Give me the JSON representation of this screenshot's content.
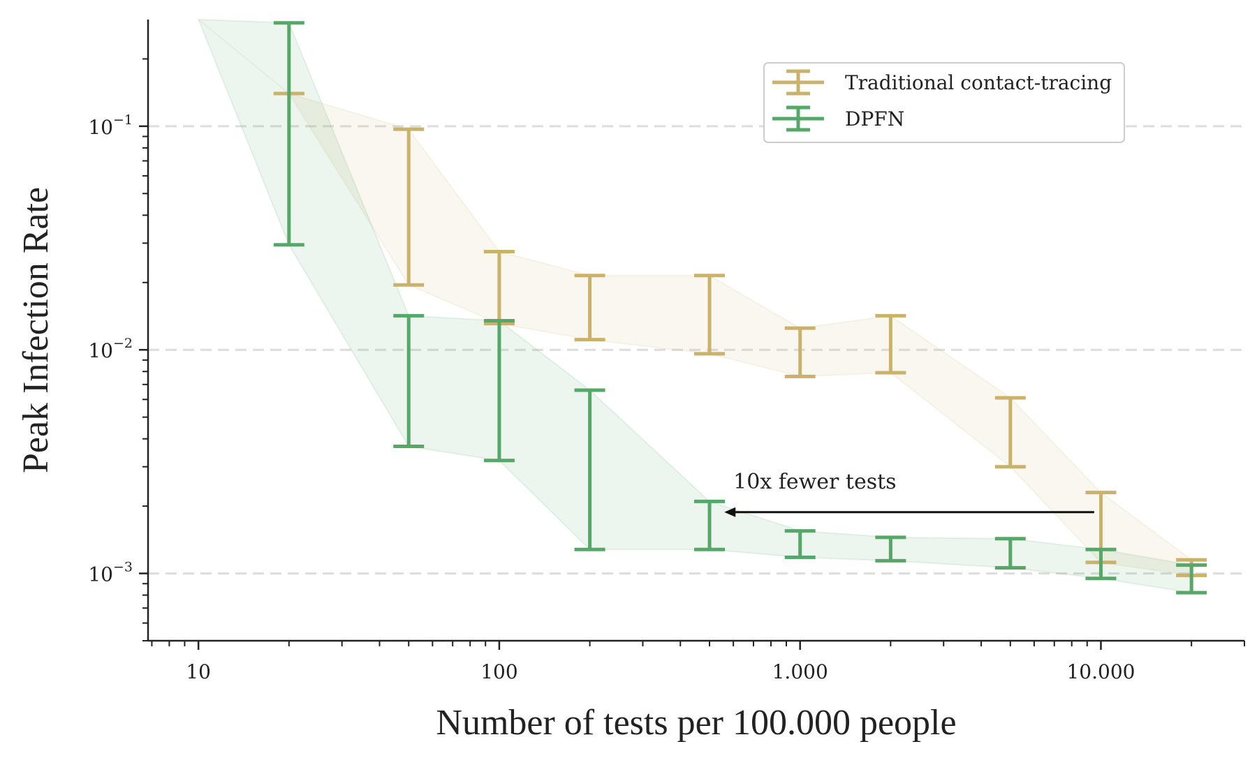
{
  "chart_data": {
    "type": "line",
    "xlabel": "Number of tests per 100.000 people",
    "ylabel": "Peak Infection Rate",
    "xscale": "log",
    "yscale": "log",
    "xlim": [
      6.8,
      30000
    ],
    "ylim": [
      0.0005,
      0.3
    ],
    "grid": "horizontal dashed at decades",
    "legend_position": "top-right",
    "x_ticks": [
      {
        "value": 10,
        "label": "10"
      },
      {
        "value": 100,
        "label": "100"
      },
      {
        "value": 1000,
        "label": "1.000"
      },
      {
        "value": 10000,
        "label": "10.000"
      }
    ],
    "y_ticks": [
      {
        "value": 0.1,
        "base": "10",
        "exp": "−1"
      },
      {
        "value": 0.01,
        "base": "10",
        "exp": "−2"
      },
      {
        "value": 0.001,
        "base": "10",
        "exp": "−3"
      }
    ],
    "series": [
      {
        "name": "Traditional contact-tracing",
        "color": "#cbb26a",
        "x": [
          10,
          20,
          50,
          100,
          200,
          500,
          1000,
          2000,
          5000,
          10000,
          20000
        ],
        "lower": [
          0.3,
          0.14,
          0.0195,
          0.0131,
          0.0111,
          0.0096,
          0.0076,
          0.0079,
          0.003,
          0.00112,
          0.00098
        ],
        "upper": [
          0.3,
          0.14,
          0.097,
          0.0275,
          0.0215,
          0.0215,
          0.0125,
          0.0142,
          0.0061,
          0.0023,
          0.00115
        ],
        "errorbar_x": [
          20,
          50,
          100,
          200,
          500,
          1000,
          2000,
          5000,
          10000,
          20000
        ]
      },
      {
        "name": "DPFN",
        "color": "#55a868",
        "x": [
          10,
          20,
          50,
          100,
          200,
          500,
          1000,
          2000,
          5000,
          10000,
          20000
        ],
        "lower": [
          0.3,
          0.0295,
          0.0037,
          0.0032,
          0.00128,
          0.00128,
          0.00118,
          0.00114,
          0.00106,
          0.00095,
          0.00082
        ],
        "upper": [
          0.3,
          0.29,
          0.0142,
          0.0135,
          0.0066,
          0.0021,
          0.00155,
          0.00145,
          0.00143,
          0.00128,
          0.00109
        ],
        "errorbar_x": [
          20,
          50,
          100,
          200,
          500,
          1000,
          2000,
          5000,
          10000,
          20000
        ]
      }
    ],
    "annotations": [
      {
        "text": "10x fewer tests",
        "arrow_from": [
          9500,
          0.00188
        ],
        "arrow_to": [
          560,
          0.00188
        ],
        "text_at": [
          600,
          0.0024
        ]
      }
    ]
  }
}
